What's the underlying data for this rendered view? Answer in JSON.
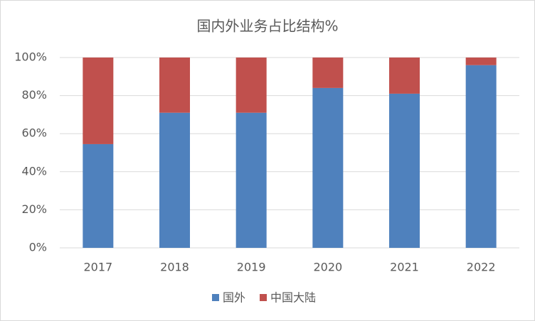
{
  "chart_data": {
    "type": "stacked_bar",
    "title": "国内外业务占比结构%",
    "categories": [
      "2017",
      "2018",
      "2019",
      "2020",
      "2021",
      "2022"
    ],
    "series": [
      {
        "name": "国外",
        "color": "#4f81bd",
        "values": [
          54.5,
          71,
          71,
          84,
          81,
          96
        ]
      },
      {
        "name": "中国大陆",
        "color": "#c0504d",
        "values": [
          45.5,
          29,
          29,
          16,
          19,
          4
        ]
      }
    ],
    "ylim": [
      0,
      100
    ],
    "yticks": [
      {
        "value": 0,
        "label": "0%"
      },
      {
        "value": 20,
        "label": "20%"
      },
      {
        "value": 40,
        "label": "40%"
      },
      {
        "value": 60,
        "label": "60%"
      },
      {
        "value": 80,
        "label": "80%"
      },
      {
        "value": 100,
        "label": "100%"
      }
    ],
    "grid": true,
    "legend": "bottom"
  }
}
